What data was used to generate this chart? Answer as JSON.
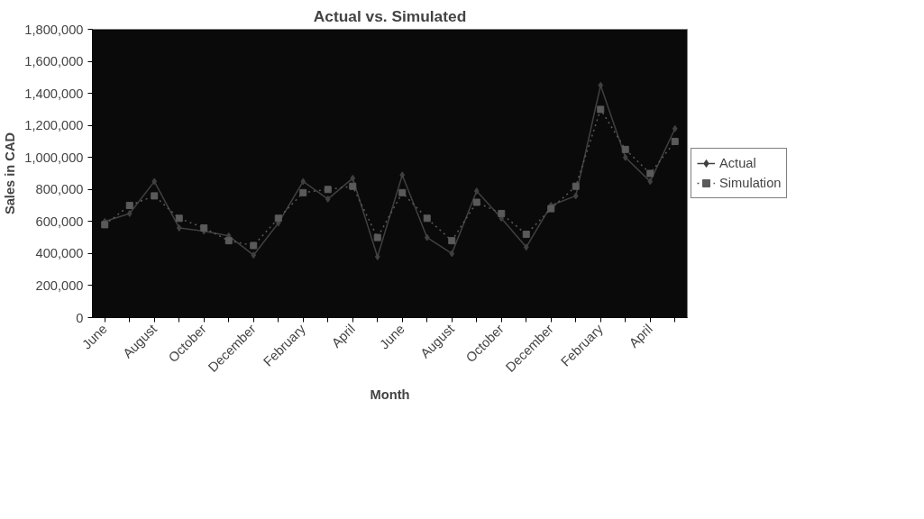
{
  "chart_data": {
    "type": "line",
    "title": "Actual vs. Simulated",
    "xlabel": "Month",
    "ylabel": "Sales in CAD",
    "categories": [
      "June",
      null,
      "August",
      null,
      "October",
      null,
      "December",
      null,
      "February",
      null,
      "April",
      null,
      "June",
      null,
      "August",
      null,
      "October",
      null,
      "December",
      null,
      "February",
      null,
      "April",
      null
    ],
    "series": [
      {
        "name": "Actual",
        "color": "#404040",
        "marker": "diamond",
        "line_style": "solid",
        "values": [
          600000,
          650000,
          850000,
          560000,
          540000,
          510000,
          390000,
          590000,
          850000,
          740000,
          870000,
          380000,
          890000,
          500000,
          400000,
          790000,
          620000,
          440000,
          700000,
          760000,
          1450000,
          1000000,
          850000,
          1180000
        ]
      },
      {
        "name": "Simulation",
        "color": "#5a5a5a",
        "marker": "square",
        "line_style": "dotted",
        "values": [
          580000,
          700000,
          760000,
          620000,
          560000,
          480000,
          450000,
          620000,
          780000,
          800000,
          820000,
          500000,
          780000,
          620000,
          480000,
          720000,
          650000,
          520000,
          680000,
          820000,
          1300000,
          1050000,
          900000,
          1100000
        ]
      }
    ],
    "ylim": [
      0,
      1800000
    ],
    "yticks": [
      {
        "value": 0,
        "label": "0"
      },
      {
        "value": 200000,
        "label": "200,000"
      },
      {
        "value": 400000,
        "label": "400,000"
      },
      {
        "value": 600000,
        "label": "600,000"
      },
      {
        "value": 800000,
        "label": "800,000"
      },
      {
        "value": 1000000,
        "label": "1,000,000"
      },
      {
        "value": 1200000,
        "label": "1,200,000"
      },
      {
        "value": 1400000,
        "label": "1,400,000"
      },
      {
        "value": 1600000,
        "label": "1,600,000"
      },
      {
        "value": 1800000,
        "label": "1,800,000"
      }
    ],
    "legend": "right",
    "grid": false
  }
}
